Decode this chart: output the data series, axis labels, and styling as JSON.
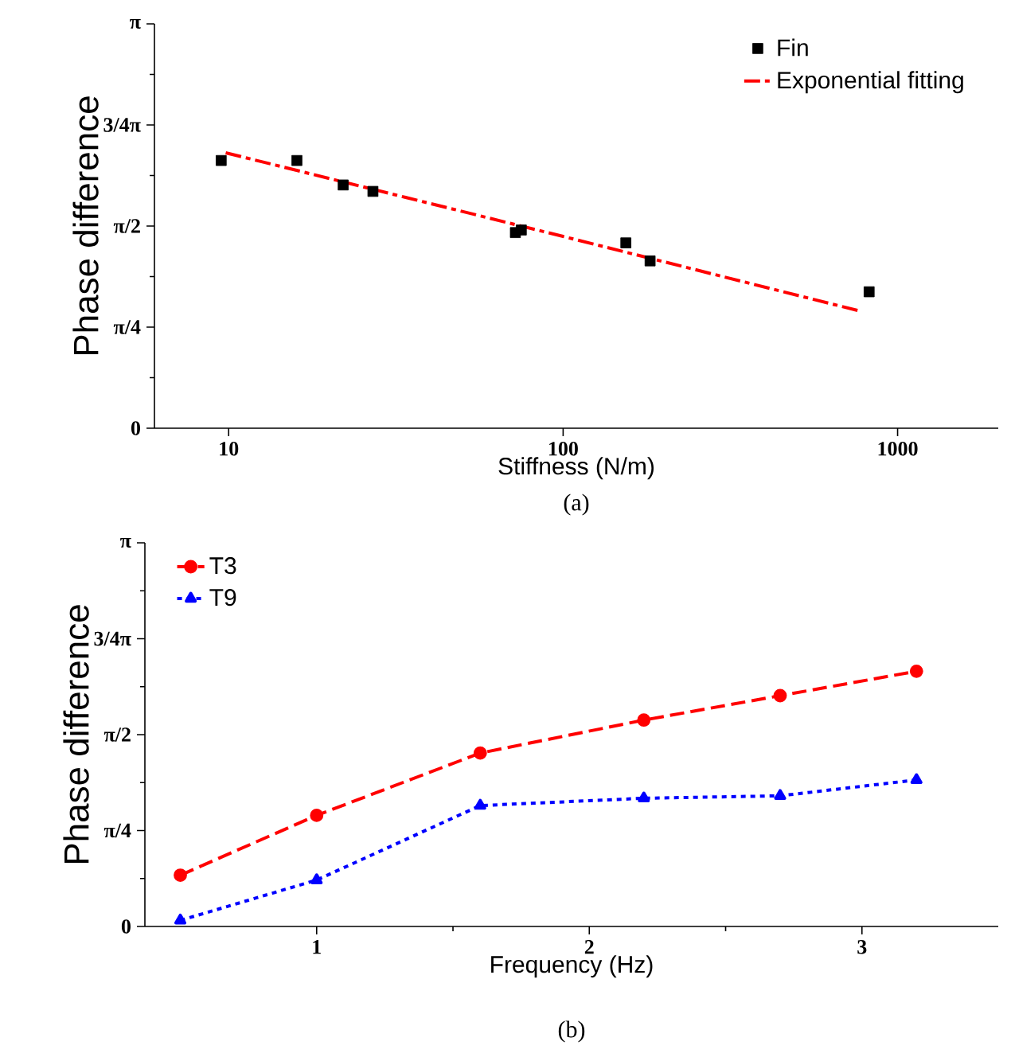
{
  "chart_data": [
    {
      "type": "scatter",
      "xlabel": "Stiffness (N/m)",
      "ylabel": "Phase difference",
      "log": "x",
      "legend": "top right",
      "xlim": [
        6,
        2000
      ],
      "ylim": [
        0,
        3.1416
      ],
      "xticks": [
        10,
        100,
        1000
      ],
      "yticks": [
        0,
        {
          "value": 0.3927,
          "label": null
        },
        {
          "value": 0.7854,
          "label": "π/4"
        },
        {
          "value": 1.1781,
          "label": null
        },
        {
          "value": 1.5708,
          "label": "π/2"
        },
        {
          "value": 1.9635,
          "label": null
        },
        {
          "value": 2.3562,
          "label": "3/4π"
        },
        {
          "value": 2.7489,
          "label": null
        },
        {
          "value": 3.1416,
          "label": "π"
        }
      ],
      "series": [
        {
          "name": "Fin",
          "type": "scatter",
          "marker": "square",
          "color": "#000000",
          "x": [
            9.5,
            16,
            22,
            27,
            72,
            75,
            154,
            182,
            822
          ],
          "values": [
            2.08,
            2.08,
            1.89,
            1.84,
            1.52,
            1.54,
            1.44,
            1.3,
            1.06
          ]
        },
        {
          "name": "Exponential fitting",
          "type": "line",
          "marker": "none",
          "line_style": "dashdot",
          "color": "#ff0000",
          "x": [
            9.8,
            100,
            773
          ],
          "values": [
            2.14,
            1.49,
            0.91
          ]
        }
      ],
      "annotations": [
        "(a)"
      ]
    },
    {
      "type": "line",
      "xlabel": "Frequency (Hz)",
      "ylabel": "Phase difference",
      "legend": "top left",
      "xlim": [
        0.37,
        3.5
      ],
      "ylim": [
        0,
        3.1416
      ],
      "xticks": [
        1,
        {
          "value": 1.5,
          "label": null
        },
        2,
        {
          "value": 2.5,
          "label": null
        },
        3
      ],
      "yticks": [
        0,
        {
          "value": 0.3927,
          "label": null
        },
        {
          "value": 0.7854,
          "label": "π/4"
        },
        {
          "value": 1.1781,
          "label": null
        },
        {
          "value": 1.5708,
          "label": "π/2"
        },
        {
          "value": 1.9635,
          "label": null
        },
        {
          "value": 2.3562,
          "label": "3/4π"
        },
        {
          "value": 2.7489,
          "label": null
        },
        {
          "value": 3.1416,
          "label": "π"
        }
      ],
      "x": [
        0.5,
        1.0,
        1.6,
        2.2,
        2.7,
        3.2
      ],
      "series": [
        {
          "name": "T3",
          "marker": "circle",
          "line_style": "dashed",
          "color": "#ff0000",
          "values": [
            0.42,
            0.91,
            1.42,
            1.69,
            1.89,
            2.09
          ]
        },
        {
          "name": "T9",
          "marker": "triangle",
          "line_style": "dotted",
          "color": "#0000ff",
          "values": [
            0.05,
            0.38,
            0.99,
            1.05,
            1.07,
            1.2
          ]
        }
      ],
      "annotations": [
        "(b)"
      ]
    }
  ]
}
